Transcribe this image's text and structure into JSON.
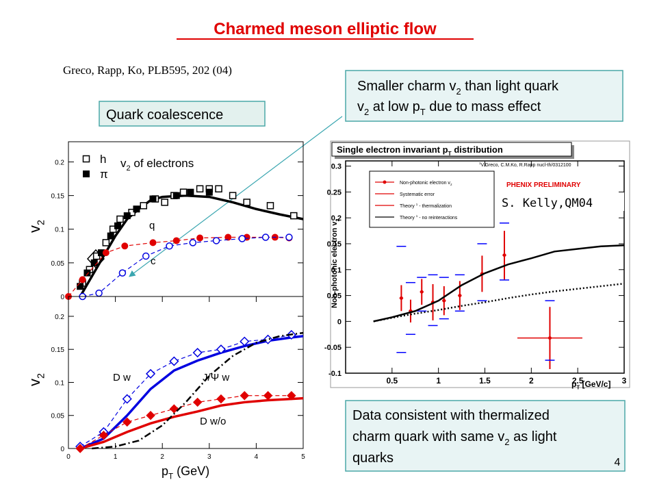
{
  "title": "Charmed meson elliptic flow",
  "citation": "Greco, Rapp, Ko, PLB595, 202 (04)",
  "label_box": "Quark coalescence",
  "callouts": [
    [
      [
        "Smaller charm v",
        {
          "sub": "2"
        },
        " than light quark"
      ],
      [
        "v",
        {
          "sub": "2"
        },
        " at low p",
        {
          "sub": "T"
        },
        " due to mass effect"
      ]
    ],
    [
      [
        "Data consistent with thermalized"
      ],
      [
        "charm quark with same v",
        {
          "sub": "2"
        },
        " as light"
      ],
      [
        "quarks"
      ]
    ]
  ],
  "credit": "S. Kelly,QM04",
  "page_number": "4",
  "chart_data": [
    {
      "type": "scatter",
      "ylabel": [
        "v",
        {
          "sub": "2"
        }
      ],
      "annotations": [
        [
          "v",
          {
            "sub": "2"
          },
          " of electrons"
        ]
      ],
      "xlim": [
        0,
        5
      ],
      "ylim": [
        0,
        0.23
      ],
      "yticks": [
        0,
        0.05,
        0.1,
        0.15,
        0.2
      ],
      "series": [
        {
          "name": "h",
          "color": "#000000",
          "marker": "open-square",
          "x": [
            0.3,
            0.45,
            0.6,
            0.8,
            0.95,
            1.1,
            1.35,
            1.6,
            1.85,
            2.05,
            2.25,
            2.45,
            2.8,
            3.0,
            3.2,
            3.5,
            3.8,
            4.3,
            4.8
          ],
          "values": [
            0.02,
            0.04,
            0.06,
            0.08,
            0.1,
            0.115,
            0.125,
            0.135,
            0.145,
            0.14,
            0.15,
            0.155,
            0.16,
            0.16,
            0.16,
            0.15,
            0.14,
            0.135,
            0.12
          ]
        },
        {
          "name": "π",
          "color": "#000000",
          "marker": "filled-square",
          "x": [
            0.25,
            0.4,
            0.55,
            0.7,
            0.9,
            1.05,
            1.25,
            1.45,
            1.8,
            2.3,
            2.6,
            3.0
          ],
          "values": [
            0.015,
            0.035,
            0.05,
            0.065,
            0.09,
            0.105,
            0.12,
            0.13,
            0.145,
            0.15,
            0.155,
            0.155
          ]
        },
        {
          "name": "q",
          "color": "#e00000",
          "marker": "filled-circle",
          "line": "dashed",
          "x": [
            0,
            0.3,
            0.8,
            1.2,
            1.8,
            2.3,
            2.8,
            3.4,
            3.8,
            4.4,
            4.7
          ],
          "values": [
            0,
            0.025,
            0.065,
            0.075,
            0.08,
            0.083,
            0.087,
            0.088,
            0.088,
            0.088,
            0.087
          ]
        },
        {
          "name": "c",
          "color": "#0000e0",
          "marker": "open-circle",
          "line": "dashed",
          "x": [
            0.3,
            0.65,
            1.15,
            1.65,
            2.15,
            2.65,
            3.15,
            3.7,
            4.2,
            4.7
          ],
          "values": [
            0,
            0.005,
            0.035,
            0.06,
            0.075,
            0.08,
            0.083,
            0.086,
            0.088,
            0.088
          ]
        }
      ],
      "lines": [
        {
          "color": "#000000",
          "style": "solid",
          "x": [
            0.25,
            0.5,
            0.75,
            1.0,
            1.25,
            1.5,
            1.75,
            2.0,
            2.5,
            3.0,
            3.5,
            4.0,
            4.5,
            5.0
          ],
          "values": [
            0,
            0.03,
            0.06,
            0.09,
            0.115,
            0.13,
            0.143,
            0.148,
            0.15,
            0.148,
            0.14,
            0.13,
            0.122,
            0.115
          ]
        }
      ]
    },
    {
      "type": "scatter",
      "ylabel": [
        "v",
        {
          "sub": "2"
        }
      ],
      "xlabel": [
        "p",
        {
          "sub": "T"
        },
        " (GeV)"
      ],
      "xlim": [
        0,
        5
      ],
      "ylim": [
        0,
        0.23
      ],
      "xticks": [
        0,
        1,
        2,
        3,
        4,
        5
      ],
      "yticks": [
        0,
        0.05,
        0.1,
        0.15,
        0.2
      ],
      "series": [
        {
          "name": "D w",
          "color": "#0000e0",
          "marker": "open-diamond",
          "line": "dashed",
          "x": [
            0.25,
            0.75,
            1.25,
            1.75,
            2.25,
            2.75,
            3.25,
            3.75,
            4.25,
            4.75
          ],
          "values": [
            0.003,
            0.025,
            0.075,
            0.113,
            0.132,
            0.145,
            0.15,
            0.162,
            0.165,
            0.172
          ]
        },
        {
          "name": "D w/o",
          "color": "#e00000",
          "marker": "filled-diamond",
          "line": "dashed",
          "x": [
            0.25,
            0.75,
            1.25,
            1.75,
            2.25,
            2.75,
            3.25,
            3.75,
            4.25,
            4.75
          ],
          "values": [
            0,
            0.02,
            0.04,
            0.05,
            0.06,
            0.07,
            0.075,
            0.08,
            0.08,
            0.08
          ]
        },
        {
          "name": "J/Ψ w",
          "color": "#000000",
          "line": "dashdot",
          "x": [
            0.5,
            1.0,
            1.5,
            2.0,
            2.5,
            3.0,
            3.5,
            4.0,
            4.5,
            5.0
          ],
          "values": [
            0,
            0.003,
            0.012,
            0.035,
            0.07,
            0.11,
            0.14,
            0.16,
            0.17,
            0.175
          ]
        }
      ],
      "lines": [
        {
          "color": "#0000e0",
          "style": "solid",
          "x": [
            0.25,
            0.75,
            1.25,
            1.75,
            2.25,
            2.75,
            3.25,
            3.75,
            4.25,
            4.75,
            5.0
          ],
          "values": [
            0,
            0.015,
            0.05,
            0.09,
            0.118,
            0.133,
            0.145,
            0.155,
            0.163,
            0.168,
            0.17
          ]
        },
        {
          "color": "#e00000",
          "style": "solid",
          "x": [
            0.25,
            0.75,
            1.25,
            1.75,
            2.25,
            2.75,
            3.25,
            3.75,
            4.25,
            4.75,
            5.0
          ],
          "values": [
            0,
            0.01,
            0.025,
            0.038,
            0.048,
            0.056,
            0.065,
            0.07,
            0.073,
            0.075,
            0.076
          ]
        }
      ]
    },
    {
      "type": "errorbar",
      "title": [
        "Single electron invariant p",
        {
          "sub": "T"
        },
        " distribution"
      ],
      "reference": [
        {
          "sup": "1"
        },
        "V.Greco, C.M.Ko, R.Rapp nucl-th/0312100"
      ],
      "watermark": "PHENIX PRELIMINARY",
      "ylabel": [
        "Non-photonic electron v",
        {
          "sub": "2"
        }
      ],
      "xlabel": [
        "p",
        {
          "sub": "T"
        },
        " [GeV/c]"
      ],
      "xlim": [
        0,
        3
      ],
      "ylim": [
        -0.1,
        0.31
      ],
      "xticks": [
        0.5,
        1,
        1.5,
        2,
        2.5,
        3
      ],
      "yticks": [
        -0.1,
        -0.05,
        0,
        0.05,
        0.1,
        0.15,
        0.2,
        0.25,
        0.3
      ],
      "series": [
        {
          "name": [
            "Non-photonic electron v",
            {
              "sub": "2"
            }
          ],
          "color": "#e00000",
          "marker": "filled-circle",
          "x": [
            0.6,
            0.7,
            0.82,
            0.94,
            1.06,
            1.23,
            1.47,
            1.71,
            2.2
          ],
          "values": [
            0.045,
            0.02,
            0.057,
            0.037,
            0.04,
            0.05,
            0.092,
            0.128,
            -0.032
          ],
          "errors": [
            0.025,
            0.022,
            0.025,
            0.035,
            0.028,
            0.028,
            0.035,
            0.047,
            0.06
          ],
          "xerrors": [
            0.02,
            0.02,
            0.02,
            0.02,
            0.02,
            0.02,
            0.02,
            0.02,
            0.35
          ]
        },
        {
          "name": "Systematic error",
          "color": "#0000ff",
          "x": [
            0.6,
            0.7,
            0.82,
            0.94,
            1.06,
            1.23,
            1.47,
            1.71,
            2.2
          ],
          "upper": [
            0.145,
            0.075,
            0.085,
            0.09,
            0.085,
            0.09,
            0.15,
            0.19,
            0.04
          ],
          "lower": [
            -0.06,
            -0.025,
            0.02,
            -0.008,
            0.005,
            0.02,
            0.04,
            0.08,
            -0.075
          ]
        },
        {
          "name": [
            "Theory ",
            {
              "sup": "1"
            },
            " - thermalization"
          ],
          "color": "#000000",
          "line": "solid",
          "x": [
            0.3,
            0.5,
            0.75,
            1.0,
            1.25,
            1.5,
            1.75,
            2.0,
            2.25,
            2.5,
            2.75,
            3.0
          ],
          "values": [
            0,
            0.008,
            0.02,
            0.04,
            0.07,
            0.093,
            0.11,
            0.122,
            0.135,
            0.14,
            0.145,
            0.147
          ]
        },
        {
          "name": [
            "Theory ",
            {
              "sup": "1"
            },
            " - no reinteractions"
          ],
          "color": "#000000",
          "line": "dotted",
          "x": [
            0.3,
            0.5,
            0.75,
            1.0,
            1.25,
            1.5,
            1.75,
            2.0,
            2.25,
            2.5,
            2.75,
            3.0
          ],
          "values": [
            0,
            0.007,
            0.015,
            0.022,
            0.03,
            0.037,
            0.045,
            0.052,
            0.058,
            0.063,
            0.068,
            0.073
          ]
        }
      ]
    }
  ]
}
